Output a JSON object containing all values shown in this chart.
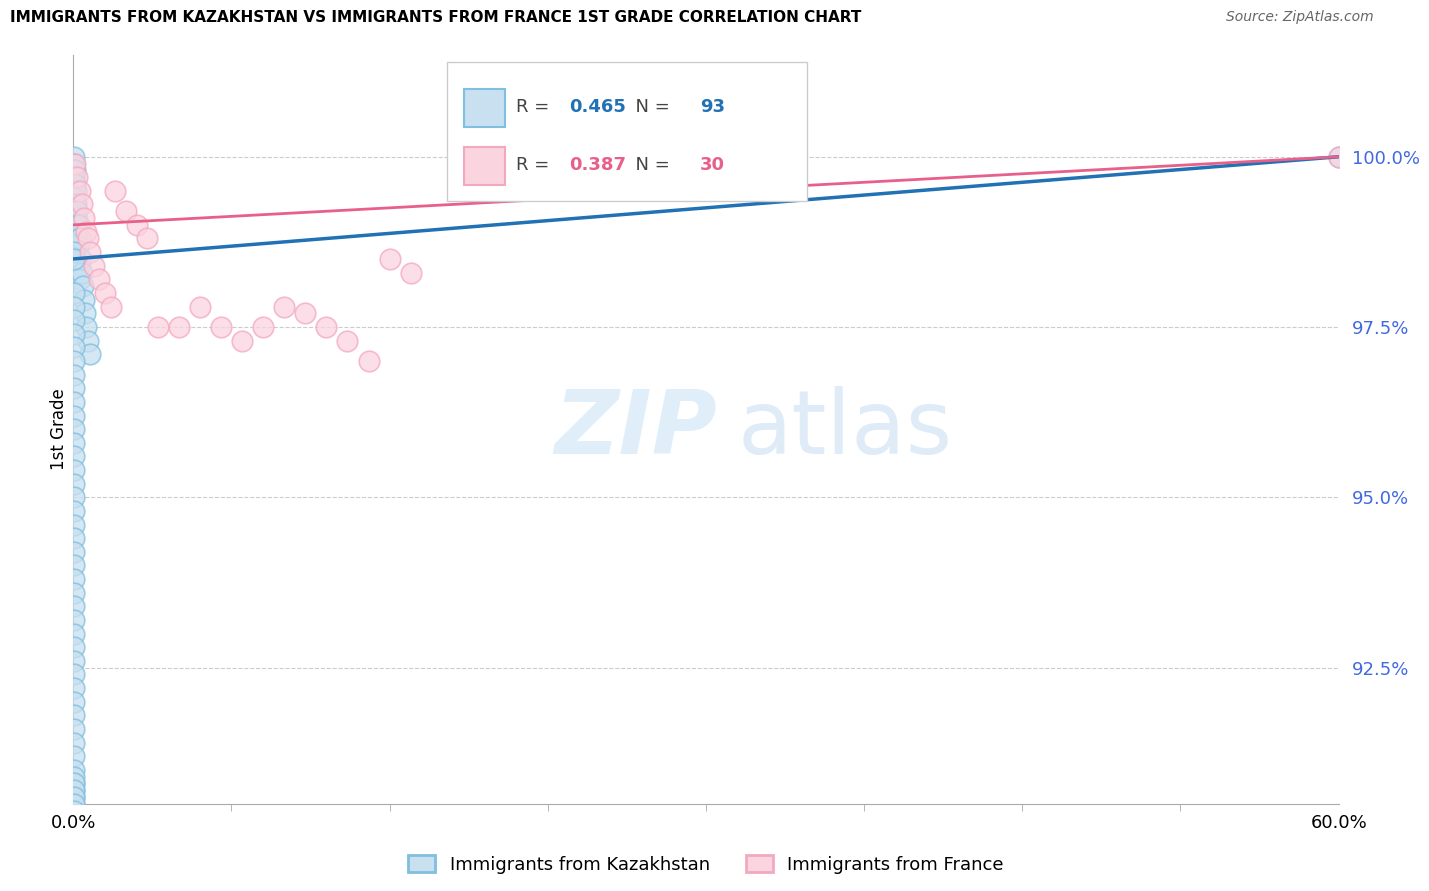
{
  "title": "IMMIGRANTS FROM KAZAKHSTAN VS IMMIGRANTS FROM FRANCE 1ST GRADE CORRELATION CHART",
  "source": "Source: ZipAtlas.com",
  "ylabel": "1st Grade",
  "ytick_values": [
    92.5,
    95.0,
    97.5,
    100.0
  ],
  "xmin": 0.0,
  "xmax": 60.0,
  "ymin": 90.5,
  "ymax": 101.5,
  "legend_kaz_label": "Immigrants from Kazakhstan",
  "legend_fra_label": "Immigrants from France",
  "R_kaz": 0.465,
  "N_kaz": 93,
  "R_fra": 0.387,
  "N_fra": 30,
  "color_kaz": "#7fbfdf",
  "color_fra": "#f4a8be",
  "color_kaz_fill": "#c8e0f0",
  "color_fra_fill": "#fad4df",
  "color_kaz_line": "#2171b5",
  "color_fra_line": "#e8608a",
  "color_ytick": "#4169E1",
  "kaz_x": [
    0.05,
    0.05,
    0.05,
    0.05,
    0.05,
    0.05,
    0.05,
    0.05,
    0.05,
    0.05,
    0.1,
    0.1,
    0.1,
    0.1,
    0.1,
    0.1,
    0.1,
    0.15,
    0.15,
    0.15,
    0.15,
    0.15,
    0.2,
    0.2,
    0.2,
    0.2,
    0.25,
    0.25,
    0.25,
    0.3,
    0.3,
    0.3,
    0.35,
    0.4,
    0.45,
    0.5,
    0.55,
    0.6,
    0.7,
    0.8,
    0.05,
    0.05,
    0.05,
    0.05,
    0.05,
    0.05,
    0.05,
    0.05,
    0.05,
    0.05,
    0.05,
    0.05,
    0.05,
    0.05,
    0.05,
    0.05,
    0.05,
    0.05,
    0.05,
    0.05,
    0.05,
    0.05,
    0.05,
    0.05,
    0.05,
    0.05,
    0.05,
    0.05,
    0.05,
    0.05,
    0.05,
    0.05,
    0.05,
    0.05,
    0.05,
    0.05,
    0.05,
    0.05,
    0.05,
    0.05,
    0.05,
    0.05,
    0.05,
    0.05,
    0.05,
    0.05,
    0.05,
    0.05,
    0.05,
    0.05,
    0.05,
    0.05,
    60.0
  ],
  "kaz_y": [
    100.0,
    99.9,
    99.8,
    99.7,
    99.6,
    99.5,
    99.4,
    99.3,
    99.2,
    99.1,
    99.8,
    99.6,
    99.4,
    99.2,
    99.0,
    98.8,
    98.6,
    99.5,
    99.3,
    99.1,
    98.9,
    98.7,
    99.2,
    99.0,
    98.8,
    98.5,
    99.0,
    98.7,
    98.4,
    98.8,
    98.5,
    98.2,
    98.5,
    98.3,
    98.1,
    97.9,
    97.7,
    97.5,
    97.3,
    97.1,
    98.0,
    97.8,
    97.6,
    97.4,
    97.2,
    97.0,
    96.8,
    96.6,
    96.4,
    96.2,
    96.0,
    95.8,
    95.6,
    95.4,
    95.2,
    95.0,
    94.8,
    94.6,
    94.4,
    94.2,
    94.0,
    93.8,
    93.6,
    93.4,
    93.2,
    93.0,
    92.8,
    92.6,
    92.4,
    92.2,
    92.0,
    91.8,
    91.6,
    91.4,
    91.2,
    91.0,
    90.8,
    90.7,
    90.6,
    90.5,
    90.9,
    90.8,
    90.7,
    90.6,
    90.5,
    90.4,
    90.3,
    90.2,
    90.1,
    90.0,
    98.6,
    98.5,
    100.0
  ],
  "fra_x": [
    0.1,
    0.2,
    0.3,
    0.4,
    0.5,
    0.6,
    0.7,
    0.8,
    1.0,
    1.2,
    1.5,
    1.8,
    2.0,
    2.5,
    3.0,
    3.5,
    4.0,
    5.0,
    6.0,
    7.0,
    8.0,
    9.0,
    10.0,
    11.0,
    12.0,
    13.0,
    14.0,
    15.0,
    16.0,
    60.0
  ],
  "fra_y": [
    99.9,
    99.7,
    99.5,
    99.3,
    99.1,
    98.9,
    98.8,
    98.6,
    98.4,
    98.2,
    98.0,
    97.8,
    99.5,
    99.2,
    99.0,
    98.8,
    97.5,
    97.5,
    97.8,
    97.5,
    97.3,
    97.5,
    97.8,
    97.7,
    97.5,
    97.3,
    97.0,
    98.5,
    98.3,
    100.0
  ]
}
